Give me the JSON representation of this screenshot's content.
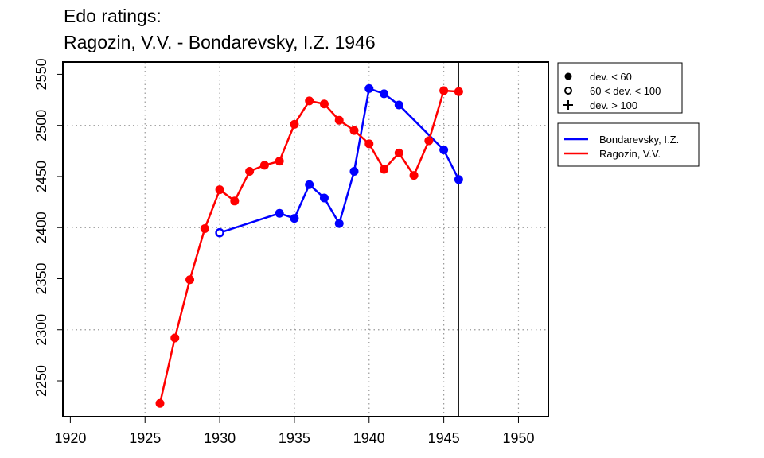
{
  "chart_data": {
    "type": "line",
    "title": "Edo ratings:",
    "subtitle": "Ragozin, V.V. - Bondarevsky, I.Z. 1946",
    "xlabel": "",
    "ylabel": "",
    "xlim": [
      1919.5,
      1952
    ],
    "ylim": [
      2215,
      2562
    ],
    "x_ticks": [
      "1920",
      "1925",
      "1930",
      "1935",
      "1940",
      "1945",
      "1950"
    ],
    "y_ticks": [
      "2250",
      "2300",
      "2350",
      "2400",
      "2450",
      "2500",
      "2550"
    ],
    "x_grid": [
      1925,
      1930,
      1935,
      1940,
      1945,
      1950
    ],
    "y_grid": [
      2300,
      2400,
      2500
    ],
    "vline": 1946,
    "series": [
      {
        "name": "Bondarevsky, I.Z.",
        "color": "#0000ff",
        "x": [
          1930,
          1934,
          1935,
          1936,
          1937,
          1938,
          1939,
          1940,
          1941,
          1942,
          1945,
          1946
        ],
        "y": [
          2395,
          2414,
          2409,
          2442,
          2429,
          2404,
          2455,
          2536,
          2531,
          2520,
          2476,
          2447
        ],
        "markers": [
          "open",
          "filled",
          "filled",
          "filled",
          "filled",
          "filled",
          "filled",
          "filled",
          "filled",
          "filled",
          "filled",
          "filled"
        ]
      },
      {
        "name": "Ragozin, V.V.",
        "color": "#ff0000",
        "x": [
          1926,
          1927,
          1928,
          1929,
          1930,
          1931,
          1932,
          1933,
          1934,
          1935,
          1936,
          1937,
          1938,
          1939,
          1940,
          1941,
          1942,
          1943,
          1944,
          1945,
          1946
        ],
        "y": [
          2228,
          2292,
          2349,
          2399,
          2437,
          2426,
          2455,
          2461,
          2465,
          2501,
          2524,
          2521,
          2505,
          2495,
          2482,
          2457,
          2473,
          2451,
          2485,
          2534,
          2533
        ],
        "markers": [
          "filled",
          "filled",
          "filled",
          "filled",
          "filled",
          "filled",
          "filled",
          "filled",
          "filled",
          "filled",
          "filled",
          "filled",
          "filled",
          "filled",
          "filled",
          "filled",
          "filled",
          "filled",
          "filled",
          "filled",
          "filled"
        ]
      }
    ],
    "marker_legend": [
      {
        "symbol": "filled-circle",
        "label": "dev. < 60"
      },
      {
        "symbol": "open-circle",
        "label": "60 < dev. < 100"
      },
      {
        "symbol": "plus",
        "label": "dev. > 100"
      }
    ],
    "legend_position": "right-outside-top"
  }
}
